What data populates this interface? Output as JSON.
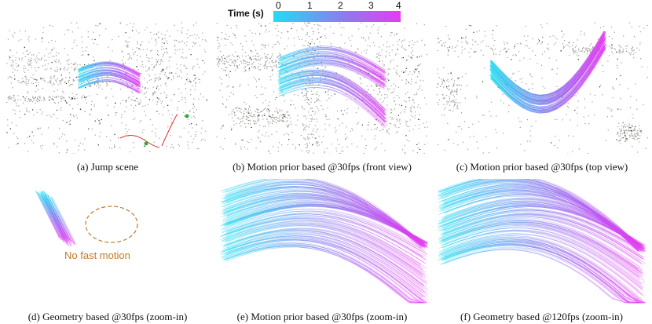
{
  "colorbar": {
    "title": "Time (s)",
    "ticks": [
      "0",
      "1",
      "2",
      "3",
      "4"
    ],
    "color_start": "#22ddf2",
    "color_mid": "#8c7cf0",
    "color_end": "#e53cf2"
  },
  "panels": [
    {
      "caption": "(a) Jump scene"
    },
    {
      "caption": "(b) Motion prior based @30fps (front view)"
    },
    {
      "caption": "(c) Motion prior based @30fps (top view)"
    },
    {
      "caption": "(d) Geometry based @30fps (zoom-in)"
    },
    {
      "caption": "(e) Motion prior based @30fps (zoom-in)"
    },
    {
      "caption": "(f) Geometry based @120fps (zoom-in)"
    }
  ],
  "annotation": {
    "text": "No fast motion",
    "color": "#c07a2a"
  },
  "colors": {
    "point_cloud": "#9a9a95",
    "point_dark": "#222222",
    "red_path": "#d8302a",
    "green_mark": "#33aa33"
  }
}
